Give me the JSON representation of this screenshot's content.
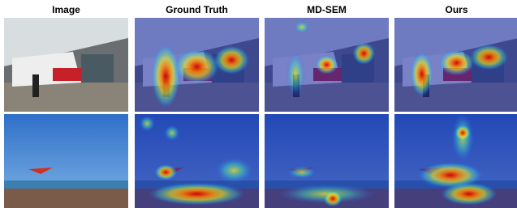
{
  "headers": [
    "Image",
    "Ground Truth",
    "MD-SEM",
    "Ours"
  ]
}
